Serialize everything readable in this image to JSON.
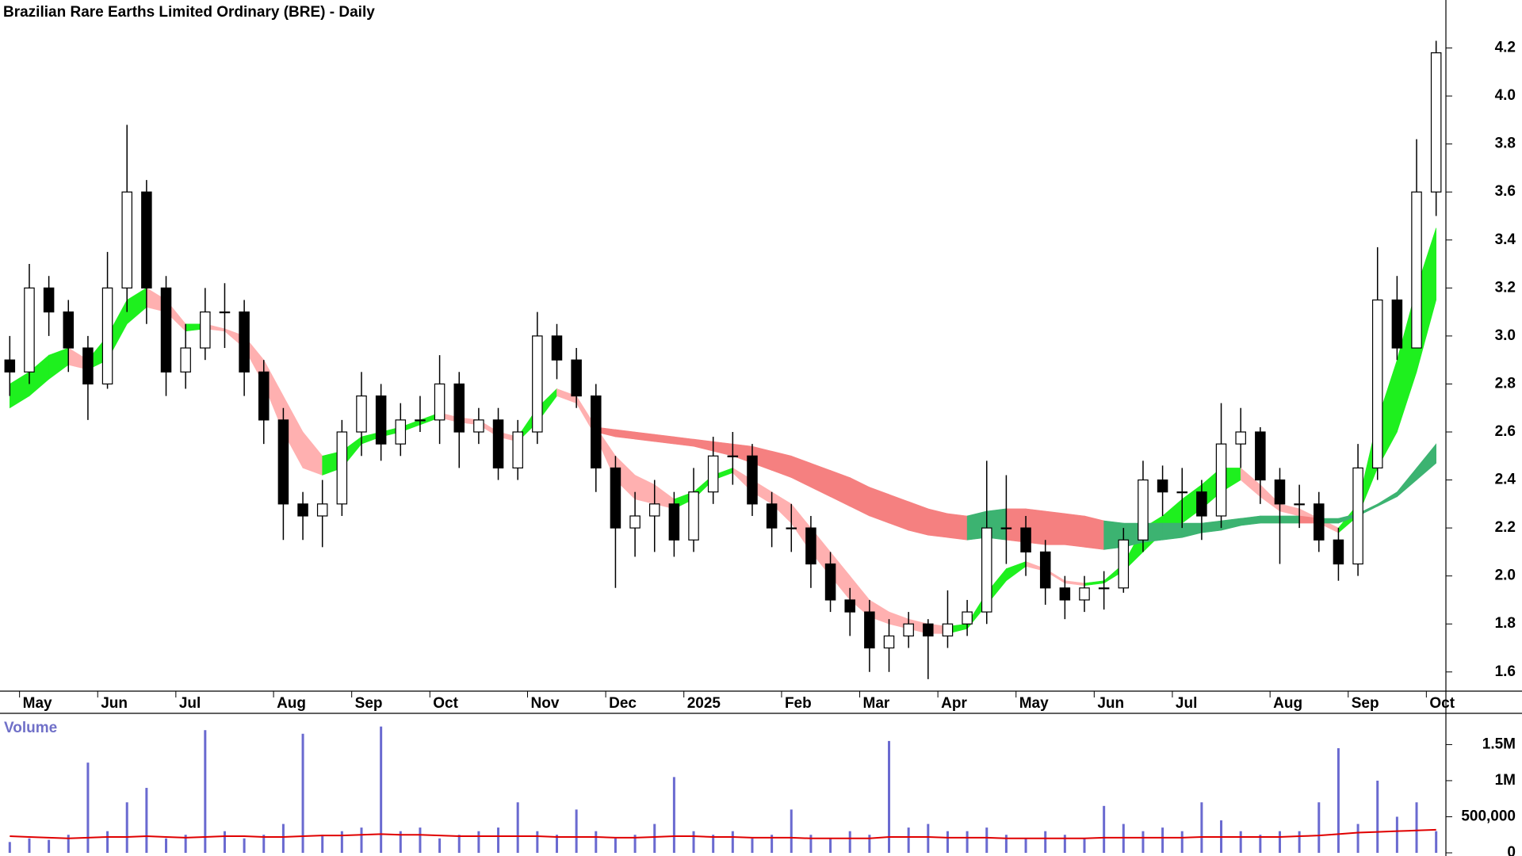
{
  "chart_data": [
    {
      "type": "candlestick",
      "title": "Brazilian Rare Earths Limited Ordinary (BRE) - Daily",
      "categories": [
        null,
        "May",
        null,
        null,
        null,
        "Jun",
        null,
        null,
        null,
        "Jul",
        null,
        null,
        null,
        null,
        "Aug",
        null,
        null,
        null,
        "Sep",
        null,
        null,
        null,
        "Oct",
        null,
        null,
        null,
        null,
        "Nov",
        null,
        null,
        null,
        "Dec",
        null,
        null,
        null,
        "2025",
        null,
        null,
        null,
        null,
        "Feb",
        null,
        null,
        null,
        "Mar",
        null,
        null,
        null,
        "Apr",
        null,
        null,
        null,
        "May",
        null,
        null,
        null,
        "Jun",
        null,
        null,
        null,
        "Jul",
        null,
        null,
        null,
        null,
        "Aug",
        null,
        null,
        null,
        "Sep",
        null,
        null,
        null,
        "Oct"
      ],
      "open": [
        2.9,
        2.85,
        3.2,
        3.1,
        2.95,
        2.8,
        3.2,
        3.6,
        3.2,
        2.85,
        2.95,
        3.1,
        3.1,
        2.85,
        2.65,
        2.3,
        2.25,
        2.3,
        2.6,
        2.75,
        2.55,
        2.65,
        2.65,
        2.8,
        2.6,
        2.65,
        2.45,
        2.6,
        3.0,
        2.9,
        2.75,
        2.45,
        2.2,
        2.25,
        2.3,
        2.15,
        2.35,
        2.5,
        2.5,
        2.3,
        2.2,
        2.2,
        2.05,
        1.9,
        1.85,
        1.7,
        1.75,
        1.8,
        1.75,
        1.8,
        1.85,
        2.2,
        2.2,
        2.1,
        1.95,
        1.9,
        1.95,
        1.95,
        2.15,
        2.4,
        2.35,
        2.35,
        2.25,
        2.55,
        2.6,
        2.4,
        2.3,
        2.3,
        2.15,
        2.05,
        2.45,
        3.15,
        2.95,
        3.6
      ],
      "high": [
        3.0,
        3.3,
        3.25,
        3.15,
        3.0,
        3.35,
        3.88,
        3.65,
        3.25,
        3.05,
        3.2,
        3.22,
        3.15,
        2.9,
        2.7,
        2.35,
        2.4,
        2.65,
        2.85,
        2.8,
        2.72,
        2.75,
        2.92,
        2.85,
        2.7,
        2.7,
        2.65,
        3.1,
        3.05,
        2.95,
        2.8,
        2.5,
        2.35,
        2.4,
        2.35,
        2.45,
        2.58,
        2.6,
        2.55,
        2.35,
        2.3,
        2.25,
        2.1,
        1.95,
        1.9,
        1.82,
        1.85,
        1.82,
        1.94,
        1.9,
        2.48,
        2.42,
        2.25,
        2.15,
        2.0,
        2.0,
        2.02,
        2.2,
        2.48,
        2.46,
        2.45,
        2.4,
        2.72,
        2.7,
        2.62,
        2.45,
        2.38,
        2.35,
        2.2,
        2.55,
        3.37,
        3.25,
        3.82,
        4.23
      ],
      "low": [
        2.75,
        2.8,
        3.0,
        2.85,
        2.65,
        2.78,
        3.1,
        3.05,
        2.75,
        2.78,
        2.9,
        2.95,
        2.75,
        2.55,
        2.15,
        2.15,
        2.12,
        2.25,
        2.5,
        2.48,
        2.5,
        2.6,
        2.55,
        2.45,
        2.55,
        2.4,
        2.4,
        2.55,
        2.82,
        2.7,
        2.35,
        1.95,
        2.08,
        2.1,
        2.08,
        2.1,
        2.3,
        2.38,
        2.25,
        2.12,
        2.1,
        1.95,
        1.85,
        1.75,
        1.6,
        1.6,
        1.7,
        1.57,
        1.7,
        1.75,
        1.8,
        2.05,
        2.0,
        1.88,
        1.82,
        1.85,
        1.86,
        1.93,
        2.1,
        2.25,
        2.2,
        2.15,
        2.2,
        2.45,
        2.3,
        2.05,
        2.2,
        2.1,
        1.98,
        2.0,
        2.4,
        2.9,
        2.95,
        3.5
      ],
      "close": [
        2.85,
        3.2,
        3.1,
        2.95,
        2.8,
        3.2,
        3.6,
        3.2,
        2.85,
        2.95,
        3.1,
        3.1,
        2.85,
        2.65,
        2.3,
        2.25,
        2.3,
        2.6,
        2.75,
        2.55,
        2.65,
        2.65,
        2.8,
        2.6,
        2.65,
        2.45,
        2.6,
        3.0,
        2.9,
        2.75,
        2.45,
        2.2,
        2.25,
        2.3,
        2.15,
        2.35,
        2.5,
        2.5,
        2.3,
        2.2,
        2.2,
        2.05,
        1.9,
        1.85,
        1.7,
        1.75,
        1.8,
        1.75,
        1.8,
        1.85,
        2.2,
        2.2,
        2.1,
        1.95,
        1.9,
        1.95,
        1.95,
        2.15,
        2.4,
        2.35,
        2.35,
        2.25,
        2.55,
        2.6,
        2.4,
        2.3,
        2.3,
        2.15,
        2.05,
        2.45,
        3.15,
        2.95,
        3.6,
        4.18
      ],
      "bands": [
        {
          "upper": [
            2.8,
            2.85,
            2.92,
            2.95,
            2.9,
            3.0,
            3.15,
            3.2,
            3.15,
            3.05,
            3.05,
            3.03,
            3.0,
            2.9,
            2.75,
            2.6,
            2.5,
            2.52,
            2.58,
            2.6,
            2.62,
            2.65,
            2.68,
            2.66,
            2.65,
            2.6,
            2.58,
            2.7,
            2.78,
            2.75,
            2.62,
            2.5,
            2.42,
            2.38,
            2.32,
            2.35,
            2.42,
            2.45,
            2.4,
            2.35,
            2.3,
            2.2,
            2.1,
            2.0,
            1.9,
            1.85,
            1.82,
            1.8,
            1.79,
            1.8,
            1.93,
            2.03,
            2.06,
            2.03,
            1.98,
            1.97,
            1.98,
            2.05,
            2.2,
            2.25,
            2.32,
            2.38,
            2.45,
            2.45,
            2.38,
            2.3,
            2.28,
            2.24,
            2.2,
            2.3,
            2.65,
            2.9,
            3.2,
            3.45
          ],
          "lower": [
            2.7,
            2.75,
            2.82,
            2.88,
            2.86,
            2.9,
            3.05,
            3.12,
            3.1,
            3.02,
            3.03,
            3.02,
            2.95,
            2.8,
            2.6,
            2.45,
            2.42,
            2.45,
            2.55,
            2.58,
            2.6,
            2.63,
            2.66,
            2.64,
            2.63,
            2.58,
            2.56,
            2.64,
            2.75,
            2.72,
            2.58,
            2.4,
            2.32,
            2.3,
            2.28,
            2.32,
            2.4,
            2.43,
            2.35,
            2.3,
            2.22,
            2.1,
            2.0,
            1.9,
            1.83,
            1.8,
            1.78,
            1.76,
            1.76,
            1.78,
            1.88,
            1.98,
            2.04,
            2.02,
            1.97,
            1.96,
            1.97,
            2.02,
            2.1,
            2.18,
            2.22,
            2.28,
            2.35,
            2.4,
            2.33,
            2.27,
            2.25,
            2.22,
            2.18,
            2.25,
            2.45,
            2.6,
            2.85,
            3.15
          ],
          "color_up": "#1ef01e",
          "color_down": "#ffb0b0"
        },
        {
          "upper": [
            null,
            null,
            null,
            null,
            null,
            null,
            null,
            null,
            null,
            null,
            null,
            null,
            null,
            null,
            null,
            null,
            null,
            null,
            null,
            null,
            null,
            null,
            null,
            null,
            null,
            null,
            null,
            null,
            null,
            null,
            2.62,
            2.61,
            2.6,
            2.59,
            2.58,
            2.57,
            2.56,
            2.55,
            2.54,
            2.52,
            2.5,
            2.47,
            2.44,
            2.41,
            2.37,
            2.34,
            2.31,
            2.28,
            2.26,
            2.25,
            2.27,
            2.28,
            2.28,
            2.27,
            2.26,
            2.25,
            2.23,
            2.22,
            2.22,
            2.22,
            2.22,
            2.22,
            2.23,
            2.24,
            2.25,
            2.25,
            2.25,
            2.24,
            2.24,
            2.26,
            2.3,
            2.35,
            2.45,
            2.55
          ],
          "lower": [
            null,
            null,
            null,
            null,
            null,
            null,
            null,
            null,
            null,
            null,
            null,
            null,
            null,
            null,
            null,
            null,
            null,
            null,
            null,
            null,
            null,
            null,
            null,
            null,
            null,
            null,
            null,
            null,
            null,
            null,
            2.6,
            2.58,
            2.57,
            2.56,
            2.55,
            2.54,
            2.52,
            2.5,
            2.47,
            2.44,
            2.41,
            2.37,
            2.33,
            2.29,
            2.25,
            2.22,
            2.19,
            2.17,
            2.16,
            2.15,
            2.16,
            2.15,
            2.14,
            2.13,
            2.13,
            2.12,
            2.11,
            2.12,
            2.14,
            2.15,
            2.16,
            2.18,
            2.19,
            2.21,
            2.22,
            2.22,
            2.22,
            2.22,
            2.22,
            2.25,
            2.29,
            2.33,
            2.4,
            2.47
          ],
          "color_up": "#3cb371",
          "color_down": "#f58080"
        }
      ],
      "ylim": [
        1.52,
        4.4
      ],
      "yticks": [
        1.6,
        1.8,
        {
          "value": 2,
          "label": "2.0"
        },
        2.2,
        2.4,
        2.6,
        2.8,
        {
          "value": 3,
          "label": "3.0"
        },
        3.2,
        3.4,
        3.6,
        3.8,
        {
          "value": 4,
          "label": "4.0"
        },
        4.2
      ]
    },
    {
      "type": "bar",
      "title": "Volume",
      "color": "#6a6ad0",
      "ma_color": "#e00000",
      "values": [
        150000,
        200000,
        180000,
        250000,
        1250000,
        300000,
        700000,
        900000,
        200000,
        250000,
        1700000,
        300000,
        200000,
        250000,
        400000,
        1650000,
        250000,
        300000,
        350000,
        1750000,
        300000,
        350000,
        200000,
        250000,
        300000,
        350000,
        700000,
        300000,
        250000,
        600000,
        300000,
        200000,
        250000,
        400000,
        1050000,
        300000,
        250000,
        300000,
        200000,
        250000,
        600000,
        250000,
        200000,
        300000,
        250000,
        1550000,
        350000,
        400000,
        300000,
        300000,
        350000,
        250000,
        200000,
        300000,
        250000,
        200000,
        650000,
        400000,
        300000,
        350000,
        300000,
        700000,
        450000,
        300000,
        250000,
        300000,
        300000,
        700000,
        1450000,
        400000,
        1000000,
        500000,
        700000,
        300000
      ],
      "ma_values": [
        230000,
        220000,
        210000,
        200000,
        210000,
        220000,
        220000,
        230000,
        220000,
        210000,
        220000,
        230000,
        230000,
        220000,
        220000,
        230000,
        240000,
        240000,
        250000,
        260000,
        250000,
        250000,
        240000,
        230000,
        230000,
        230000,
        230000,
        230000,
        220000,
        220000,
        220000,
        210000,
        210000,
        220000,
        230000,
        230000,
        220000,
        220000,
        210000,
        210000,
        210000,
        200000,
        200000,
        200000,
        200000,
        220000,
        220000,
        220000,
        210000,
        210000,
        210000,
        200000,
        200000,
        200000,
        200000,
        200000,
        210000,
        210000,
        210000,
        210000,
        210000,
        220000,
        220000,
        220000,
        220000,
        220000,
        230000,
        240000,
        260000,
        280000,
        290000,
        300000,
        310000,
        320000
      ],
      "ylim": [
        0,
        1900000
      ],
      "yticks": [
        0,
        {
          "value": 500000,
          "label": "500,000"
        },
        {
          "value": 1000000,
          "label": "1M"
        },
        {
          "value": 1500000,
          "label": "1.5M"
        }
      ]
    }
  ]
}
